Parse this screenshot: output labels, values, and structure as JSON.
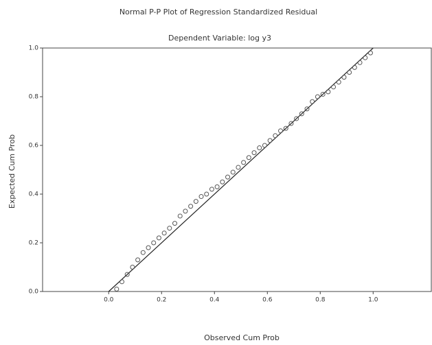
{
  "chart_data": {
    "type": "scatter",
    "title": "Normal P-P Plot of Regression Standardized Residual",
    "subtitle": "Dependent Variable: log y3",
    "x_label": "Observed Cum Prob",
    "y_label": "Expected Cum Prob",
    "xlim": [
      -0.25,
      1.22
    ],
    "ylim": [
      0,
      1
    ],
    "xticks": [
      {
        "value": 0,
        "label": "0.0"
      },
      0.2,
      0.4,
      0.6,
      0.8,
      {
        "value": 1,
        "label": "1.0"
      }
    ],
    "yticks": [
      {
        "value": 0,
        "label": "0.0"
      },
      0.2,
      0.4,
      0.6,
      0.8,
      {
        "value": 1,
        "label": "1.0"
      }
    ],
    "color": "#555555",
    "x": [
      0.03,
      0.05,
      0.07,
      0.09,
      0.11,
      0.13,
      0.15,
      0.17,
      0.19,
      0.21,
      0.23,
      0.25,
      0.27,
      0.29,
      0.31,
      0.33,
      0.35,
      0.37,
      0.39,
      0.41,
      0.43,
      0.45,
      0.47,
      0.49,
      0.51,
      0.53,
      0.55,
      0.57,
      0.59,
      0.61,
      0.63,
      0.65,
      0.67,
      0.69,
      0.71,
      0.73,
      0.75,
      0.77,
      0.79,
      0.81,
      0.83,
      0.85,
      0.87,
      0.89,
      0.91,
      0.93,
      0.95,
      0.97,
      0.99
    ],
    "values": [
      0.01,
      0.04,
      0.07,
      0.1,
      0.13,
      0.16,
      0.18,
      0.2,
      0.22,
      0.24,
      0.26,
      0.28,
      0.31,
      0.33,
      0.35,
      0.37,
      0.39,
      0.4,
      0.42,
      0.43,
      0.45,
      0.47,
      0.49,
      0.51,
      0.53,
      0.55,
      0.57,
      0.59,
      0.6,
      0.62,
      0.64,
      0.66,
      0.67,
      0.69,
      0.71,
      0.73,
      0.75,
      0.78,
      0.8,
      0.81,
      0.82,
      0.84,
      0.86,
      0.88,
      0.9,
      0.92,
      0.94,
      0.96,
      0.98
    ],
    "reference_line": {
      "x": [
        0,
        1
      ],
      "y": [
        0,
        1
      ]
    }
  }
}
